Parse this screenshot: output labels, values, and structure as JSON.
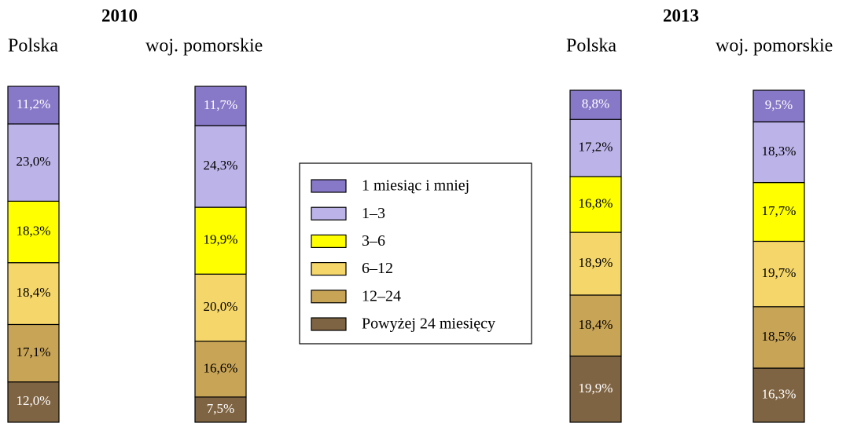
{
  "chart_data": {
    "type": "stacked_bar",
    "groups": [
      "2010",
      "2013"
    ],
    "categories": [
      "Polska",
      "woj. pomorskie",
      "Polska",
      "woj. pomorskie"
    ],
    "ylim": [
      0,
      100
    ],
    "legend": "center",
    "series": [
      {
        "name": "1 miesiąc i mniej",
        "color": "#8878c8",
        "values": [
          11.2,
          11.7,
          8.8,
          9.5
        ],
        "value_labels": [
          "11,2%",
          "11,7%",
          "8,8%",
          "9,5%"
        ]
      },
      {
        "name": "1–3",
        "color": "#bcb4e8",
        "values": [
          23.0,
          24.3,
          17.2,
          18.3
        ],
        "value_labels": [
          "23,0%",
          "24,3%",
          "17,2%",
          "18,3%"
        ]
      },
      {
        "name": "3–6",
        "color": "#ffff00",
        "values": [
          18.3,
          19.9,
          16.8,
          17.7
        ],
        "value_labels": [
          "18,3%",
          "19,9%",
          "16,8%",
          "17,7%"
        ]
      },
      {
        "name": "6–12",
        "color": "#f5d66a",
        "values": [
          18.4,
          20.0,
          18.9,
          19.7
        ],
        "value_labels": [
          "18,4%",
          "20,0%",
          "18,9%",
          "19,7%"
        ]
      },
      {
        "name": "12–24",
        "color": "#c8a456",
        "values": [
          17.1,
          16.6,
          18.4,
          18.5
        ],
        "value_labels": [
          "17,1%",
          "16,6%",
          "18,4%",
          "18,5%"
        ]
      },
      {
        "name": "Powyżej 24 miesięcy",
        "color": "#7f6443",
        "values": [
          12.0,
          7.5,
          19.9,
          16.3
        ],
        "value_labels": [
          "12,0%",
          "7,5%",
          "19,9%",
          "16,3%"
        ]
      }
    ]
  }
}
